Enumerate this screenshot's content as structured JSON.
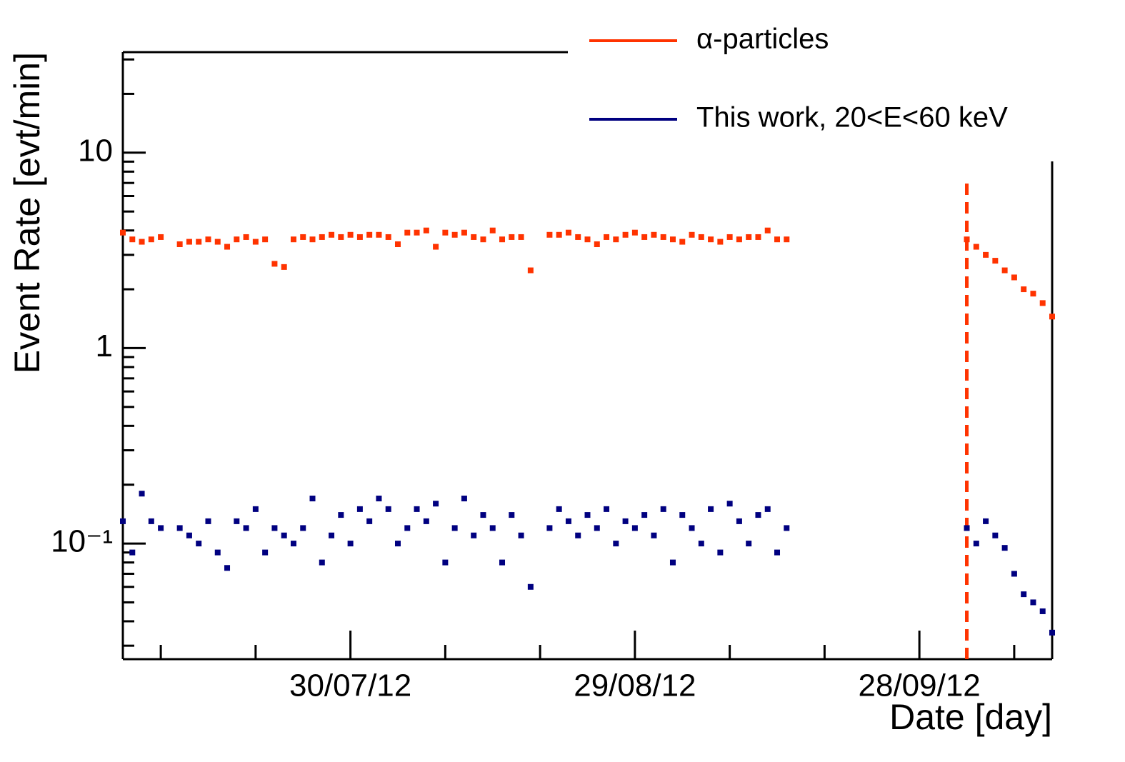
{
  "chart_data": {
    "type": "scatter",
    "y_label": "Event Rate [evt/min]",
    "x_label": "Date [day]",
    "log_y": true,
    "legend_position": "top-right",
    "xlim": [
      "06/07/12",
      "12/10/12"
    ],
    "xticks": [
      "30/07/12",
      "29/08/12",
      "28/09/12"
    ],
    "xminorticks": [
      "10/07/12",
      "20/07/12",
      "09/08/12",
      "19/08/12",
      "08/09/12",
      "18/09/12",
      "08/10/12"
    ],
    "ylim": [
      0.0256,
      32.7
    ],
    "yticks": [
      {
        "value": 0.1,
        "label": "10⁻¹"
      },
      1,
      10
    ],
    "yminorticks": [
      0.03,
      0.04,
      0.05,
      0.06,
      0.07,
      0.08,
      0.09,
      0.2,
      0.3,
      0.4,
      0.5,
      0.6,
      0.7,
      0.8,
      0.9,
      2,
      3,
      4,
      5,
      6,
      7,
      8,
      9,
      20,
      30
    ],
    "vline": {
      "x": "03/10/12",
      "color": "#ff3300",
      "dashed": true
    },
    "x": [
      "06/07/12",
      "07/07/12",
      "08/07/12",
      "09/07/12",
      "10/07/12",
      "12/07/12",
      "13/07/12",
      "14/07/12",
      "15/07/12",
      "16/07/12",
      "17/07/12",
      "18/07/12",
      "19/07/12",
      "20/07/12",
      "21/07/12",
      "22/07/12",
      "23/07/12",
      "24/07/12",
      "25/07/12",
      "26/07/12",
      "27/07/12",
      "28/07/12",
      "29/07/12",
      "30/07/12",
      "31/07/12",
      "01/08/12",
      "02/08/12",
      "03/08/12",
      "04/08/12",
      "05/08/12",
      "06/08/12",
      "07/08/12",
      "08/08/12",
      "09/08/12",
      "10/08/12",
      "11/08/12",
      "12/08/12",
      "13/08/12",
      "14/08/12",
      "15/08/12",
      "16/08/12",
      "17/08/12",
      "18/08/12",
      "20/08/12",
      "21/08/12",
      "22/08/12",
      "23/08/12",
      "24/08/12",
      "25/08/12",
      "26/08/12",
      "27/08/12",
      "28/08/12",
      "29/08/12",
      "30/08/12",
      "31/08/12",
      "01/09/12",
      "02/09/12",
      "03/09/12",
      "04/09/12",
      "05/09/12",
      "06/09/12",
      "07/09/12",
      "08/09/12",
      "09/09/12",
      "10/09/12",
      "11/09/12",
      "12/09/12",
      "13/09/12",
      "14/09/12",
      "03/10/12",
      "04/10/12",
      "05/10/12",
      "06/10/12",
      "07/10/12",
      "08/10/12",
      "09/10/12",
      "10/10/12",
      "11/10/12",
      "12/10/12"
    ],
    "series": [
      {
        "name": "α-particles",
        "color": "#ff3300",
        "values": [
          3.9,
          3.6,
          3.5,
          3.6,
          3.7,
          3.4,
          3.5,
          3.5,
          3.6,
          3.5,
          3.3,
          3.6,
          3.7,
          3.5,
          3.6,
          2.7,
          2.6,
          3.6,
          3.7,
          3.6,
          3.7,
          3.8,
          3.7,
          3.8,
          3.7,
          3.8,
          3.8,
          3.7,
          3.4,
          3.9,
          3.9,
          4.0,
          3.3,
          3.9,
          3.8,
          3.9,
          3.7,
          3.6,
          4.0,
          3.6,
          3.7,
          3.7,
          2.5,
          3.8,
          3.8,
          3.9,
          3.7,
          3.6,
          3.4,
          3.7,
          3.6,
          3.8,
          3.9,
          3.7,
          3.8,
          3.7,
          3.6,
          3.5,
          3.8,
          3.7,
          3.6,
          3.5,
          3.7,
          3.6,
          3.7,
          3.7,
          4.0,
          3.6,
          3.6,
          3.6,
          3.3,
          3.0,
          2.8,
          2.5,
          2.3,
          2.0,
          1.9,
          1.7,
          1.45
        ]
      },
      {
        "name": "This work, 20<E<60 keV",
        "color": "#000080",
        "values": [
          0.13,
          0.09,
          0.18,
          0.13,
          0.12,
          0.12,
          0.11,
          0.1,
          0.13,
          0.09,
          0.075,
          0.13,
          0.12,
          0.15,
          0.09,
          0.12,
          0.11,
          0.1,
          0.12,
          0.17,
          0.08,
          0.11,
          0.14,
          0.1,
          0.15,
          0.13,
          0.17,
          0.15,
          0.1,
          0.12,
          0.15,
          0.13,
          0.16,
          0.08,
          0.12,
          0.17,
          0.11,
          0.14,
          0.12,
          0.08,
          0.14,
          0.11,
          0.06,
          0.12,
          0.15,
          0.13,
          0.11,
          0.14,
          0.12,
          0.15,
          0.1,
          0.13,
          0.12,
          0.14,
          0.11,
          0.15,
          0.08,
          0.14,
          0.12,
          0.1,
          0.15,
          0.09,
          0.16,
          0.13,
          0.1,
          0.14,
          0.15,
          0.09,
          0.12,
          0.12,
          0.1,
          0.13,
          0.11,
          0.095,
          0.07,
          0.055,
          0.05,
          0.045,
          0.035
        ]
      }
    ]
  }
}
